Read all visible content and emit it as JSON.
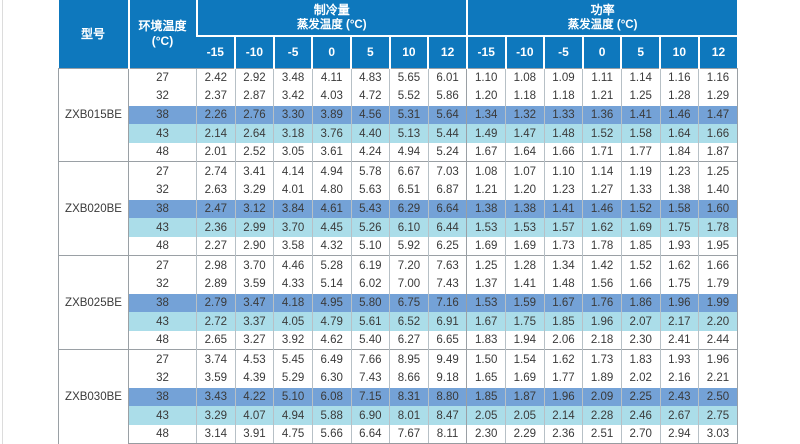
{
  "table": {
    "header": {
      "model": "型号",
      "ambient": "环境温度\n(°C)",
      "groups": [
        {
          "title": "制冷量",
          "subtitle": "蒸发温度 (°C)"
        },
        {
          "title": "功率",
          "subtitle": "蒸发温度 (°C)"
        }
      ],
      "evap_temps": [
        "-15",
        "-10",
        "-5",
        "0",
        "5",
        "10",
        "12"
      ]
    },
    "colors": {
      "header_blue": "#0e78bd",
      "row38_highlight": "#74a2d7",
      "row43_highlight": "#abdde9"
    },
    "models": [
      {
        "name": "ZXB015BE",
        "rows": [
          {
            "ambient": "27",
            "cooling": [
              "2.42",
              "2.92",
              "3.48",
              "4.11",
              "4.83",
              "5.65",
              "6.01"
            ],
            "power": [
              "1.10",
              "1.08",
              "1.09",
              "1.11",
              "1.14",
              "1.16",
              "1.16"
            ]
          },
          {
            "ambient": "32",
            "cooling": [
              "2.37",
              "2.87",
              "3.42",
              "4.03",
              "4.72",
              "5.52",
              "5.86"
            ],
            "power": [
              "1.20",
              "1.18",
              "1.18",
              "1.21",
              "1.25",
              "1.28",
              "1.29"
            ]
          },
          {
            "ambient": "38",
            "cooling": [
              "2.26",
              "2.76",
              "3.30",
              "3.89",
              "4.56",
              "5.31",
              "5.64"
            ],
            "power": [
              "1.34",
              "1.32",
              "1.33",
              "1.36",
              "1.41",
              "1.46",
              "1.47"
            ]
          },
          {
            "ambient": "43",
            "cooling": [
              "2.14",
              "2.64",
              "3.18",
              "3.76",
              "4.40",
              "5.13",
              "5.44"
            ],
            "power": [
              "1.49",
              "1.47",
              "1.48",
              "1.52",
              "1.58",
              "1.64",
              "1.66"
            ]
          },
          {
            "ambient": "48",
            "cooling": [
              "2.01",
              "2.52",
              "3.05",
              "3.61",
              "4.24",
              "4.94",
              "5.24"
            ],
            "power": [
              "1.67",
              "1.64",
              "1.66",
              "1.71",
              "1.77",
              "1.84",
              "1.87"
            ]
          }
        ]
      },
      {
        "name": "ZXB020BE",
        "rows": [
          {
            "ambient": "27",
            "cooling": [
              "2.74",
              "3.41",
              "4.14",
              "4.94",
              "5.78",
              "6.67",
              "7.03"
            ],
            "power": [
              "1.08",
              "1.07",
              "1.10",
              "1.14",
              "1.19",
              "1.23",
              "1.25"
            ]
          },
          {
            "ambient": "32",
            "cooling": [
              "2.63",
              "3.29",
              "4.01",
              "4.80",
              "5.63",
              "6.51",
              "6.87"
            ],
            "power": [
              "1.21",
              "1.20",
              "1.23",
              "1.27",
              "1.33",
              "1.38",
              "1.40"
            ]
          },
          {
            "ambient": "38",
            "cooling": [
              "2.47",
              "3.12",
              "3.84",
              "4.61",
              "5.43",
              "6.29",
              "6.64"
            ],
            "power": [
              "1.38",
              "1.38",
              "1.41",
              "1.46",
              "1.52",
              "1.58",
              "1.60"
            ]
          },
          {
            "ambient": "43",
            "cooling": [
              "2.36",
              "2.99",
              "3.70",
              "4.45",
              "5.26",
              "6.10",
              "6.44"
            ],
            "power": [
              "1.53",
              "1.53",
              "1.57",
              "1.62",
              "1.69",
              "1.75",
              "1.78"
            ]
          },
          {
            "ambient": "48",
            "cooling": [
              "2.27",
              "2.90",
              "3.58",
              "4.32",
              "5.10",
              "5.92",
              "6.25"
            ],
            "power": [
              "1.69",
              "1.69",
              "1.73",
              "1.78",
              "1.85",
              "1.93",
              "1.95"
            ]
          }
        ]
      },
      {
        "name": "ZXB025BE",
        "rows": [
          {
            "ambient": "27",
            "cooling": [
              "2.98",
              "3.70",
              "4.46",
              "5.28",
              "6.19",
              "7.20",
              "7.63"
            ],
            "power": [
              "1.25",
              "1.28",
              "1.34",
              "1.42",
              "1.52",
              "1.62",
              "1.66"
            ]
          },
          {
            "ambient": "32",
            "cooling": [
              "2.89",
              "3.59",
              "4.33",
              "5.14",
              "6.02",
              "7.00",
              "7.43"
            ],
            "power": [
              "1.37",
              "1.41",
              "1.48",
              "1.56",
              "1.66",
              "1.75",
              "1.79"
            ]
          },
          {
            "ambient": "38",
            "cooling": [
              "2.79",
              "3.47",
              "4.18",
              "4.95",
              "5.80",
              "6.75",
              "7.16"
            ],
            "power": [
              "1.53",
              "1.59",
              "1.67",
              "1.76",
              "1.86",
              "1.96",
              "1.99"
            ]
          },
          {
            "ambient": "43",
            "cooling": [
              "2.72",
              "3.37",
              "4.05",
              "4.79",
              "5.61",
              "6.52",
              "6.91"
            ],
            "power": [
              "1.67",
              "1.75",
              "1.85",
              "1.96",
              "2.07",
              "2.17",
              "2.20"
            ]
          },
          {
            "ambient": "48",
            "cooling": [
              "2.65",
              "3.27",
              "3.92",
              "4.62",
              "5.40",
              "6.27",
              "6.65"
            ],
            "power": [
              "1.83",
              "1.94",
              "2.06",
              "2.18",
              "2.30",
              "2.41",
              "2.44"
            ]
          }
        ]
      },
      {
        "name": "ZXB030BE",
        "rows": [
          {
            "ambient": "27",
            "cooling": [
              "3.74",
              "4.53",
              "5.45",
              "6.49",
              "7.66",
              "8.95",
              "9.49"
            ],
            "power": [
              "1.50",
              "1.54",
              "1.62",
              "1.73",
              "1.83",
              "1.93",
              "1.96"
            ]
          },
          {
            "ambient": "32",
            "cooling": [
              "3.59",
              "4.39",
              "5.29",
              "6.30",
              "7.43",
              "8.66",
              "9.18"
            ],
            "power": [
              "1.65",
              "1.69",
              "1.77",
              "1.89",
              "2.02",
              "2.16",
              "2.21"
            ]
          },
          {
            "ambient": "38",
            "cooling": [
              "3.43",
              "4.22",
              "5.10",
              "6.08",
              "7.15",
              "8.31",
              "8.80"
            ],
            "power": [
              "1.85",
              "1.87",
              "1.96",
              "2.09",
              "2.25",
              "2.43",
              "2.50"
            ]
          },
          {
            "ambient": "43",
            "cooling": [
              "3.29",
              "4.07",
              "4.94",
              "5.88",
              "6.90",
              "8.01",
              "8.47"
            ],
            "power": [
              "2.05",
              "2.05",
              "2.14",
              "2.28",
              "2.46",
              "2.67",
              "2.75"
            ]
          },
          {
            "ambient": "48",
            "cooling": [
              "3.14",
              "3.91",
              "4.75",
              "5.66",
              "6.64",
              "7.67",
              "8.11"
            ],
            "power": [
              "2.30",
              "2.29",
              "2.36",
              "2.51",
              "2.70",
              "2.94",
              "3.03"
            ]
          }
        ]
      }
    ]
  }
}
